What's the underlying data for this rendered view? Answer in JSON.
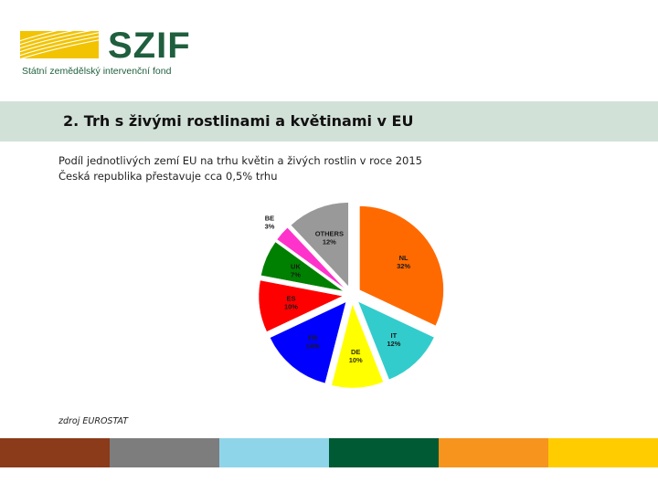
{
  "logo": {
    "name": "SZIF",
    "subtitle": "Státní zemědělský intervenční fond",
    "stripe_color": "#f2c300"
  },
  "header": {
    "title": "2. Trh s živými rostlinami a květinami v EU"
  },
  "subtitle_lines": [
    "Podíl jednotlivých zemí EU na trhu květin a živých rostlin v roce 2015",
    "Česká republika přestavuje cca 0,5% trhu"
  ],
  "chart_data": {
    "type": "pie",
    "exploded": true,
    "slices": [
      {
        "name": "NL",
        "value": 32,
        "label": "32%",
        "color": "#ff6a00"
      },
      {
        "name": "IT",
        "value": 12,
        "label": "12%",
        "color": "#33cccc"
      },
      {
        "name": "DE",
        "value": 10,
        "label": "10%",
        "color": "#ffff00"
      },
      {
        "name": "FR",
        "value": 14,
        "label": "14%",
        "color": "#0000ff"
      },
      {
        "name": "ES",
        "value": 10,
        "label": "10%",
        "color": "#ff0000"
      },
      {
        "name": "UK",
        "value": 7,
        "label": "7%",
        "color": "#008000"
      },
      {
        "name": "BE",
        "value": 3,
        "label": "3%",
        "color": "#ff33cc"
      },
      {
        "name": "OTHERS",
        "value": 12,
        "label": "12%",
        "color": "#999999"
      }
    ]
  },
  "source": "zdroj EUROSTAT",
  "footer_colors": [
    "#8b3a1a",
    "#7d7d7d",
    "#8fd5ea",
    "#005a33",
    "#f7941d",
    "#ffcc00"
  ]
}
